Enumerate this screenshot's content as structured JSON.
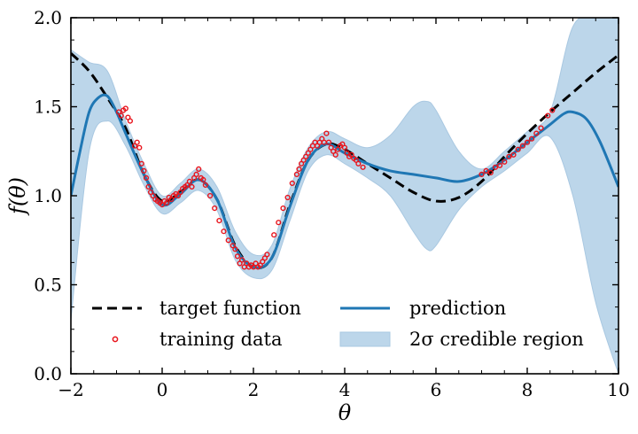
{
  "chart_data": {
    "type": "line",
    "xlabel": "θ",
    "ylabel": "f(θ)",
    "xlim": [
      -2,
      10
    ],
    "ylim": [
      0,
      2
    ],
    "xticks": [
      -2,
      0,
      2,
      4,
      6,
      8,
      10
    ],
    "yticks": [
      0.0,
      0.5,
      1.0,
      1.5,
      2.0
    ],
    "xtick_labels": [
      "−2",
      "0",
      "2",
      "4",
      "6",
      "8",
      "10"
    ],
    "ytick_labels": [
      "0.0",
      "0.5",
      "1.0",
      "1.5",
      "2.0"
    ],
    "grid": false,
    "legend_position": "bottom",
    "colors": {
      "target": "#000000",
      "prediction": "#1f77b4",
      "band": "#bcd6ea",
      "training": "#e8141c"
    },
    "series": [
      {
        "name": "target function",
        "style": "dashed",
        "x": [
          -2,
          -1.6,
          -1.2,
          -0.8,
          -0.4,
          0,
          0.4,
          0.8,
          1.2,
          1.6,
          2.0,
          2.4,
          2.8,
          3.2,
          3.6,
          4.0,
          4.5,
          5.0,
          5.5,
          6.0,
          6.5,
          7.0,
          7.5,
          8.0,
          8.5,
          9.0,
          9.5,
          10
        ],
        "y": [
          1.8,
          1.7,
          1.55,
          1.38,
          1.12,
          0.97,
          1.02,
          1.09,
          0.98,
          0.72,
          0.6,
          0.65,
          0.95,
          1.2,
          1.29,
          1.26,
          1.18,
          1.1,
          1.02,
          0.97,
          0.99,
          1.08,
          1.22,
          1.35,
          1.47,
          1.58,
          1.69,
          1.79
        ]
      },
      {
        "name": "prediction",
        "style": "solid",
        "x": [
          -2,
          -1.8,
          -1.6,
          -1.4,
          -1.2,
          -1.0,
          -0.8,
          -0.4,
          0,
          0.4,
          0.8,
          1.2,
          1.6,
          2.0,
          2.4,
          2.8,
          3.2,
          3.6,
          4.0,
          4.5,
          5.0,
          5.5,
          6.0,
          6.5,
          7.0,
          7.5,
          8.0,
          8.5,
          8.8,
          9.0,
          9.3,
          9.6,
          10
        ],
        "y": [
          1.0,
          1.25,
          1.47,
          1.55,
          1.56,
          1.47,
          1.35,
          1.12,
          0.95,
          1.01,
          1.09,
          0.98,
          0.71,
          0.6,
          0.65,
          0.94,
          1.2,
          1.29,
          1.24,
          1.18,
          1.14,
          1.12,
          1.1,
          1.08,
          1.12,
          1.2,
          1.3,
          1.4,
          1.46,
          1.47,
          1.43,
          1.3,
          1.05
        ]
      }
    ],
    "band": {
      "name": "2σ credible region",
      "x": [
        -2,
        -1.6,
        -1.2,
        -0.8,
        -0.4,
        0,
        0.4,
        0.8,
        1.2,
        1.6,
        2.0,
        2.4,
        2.8,
        3.2,
        3.6,
        4.0,
        4.5,
        5.0,
        5.5,
        5.8,
        6.0,
        6.5,
        7.0,
        7.5,
        8.0,
        8.5,
        9.0,
        9.5,
        10
      ],
      "lower": [
        0.3,
        1.25,
        1.42,
        1.28,
        1.06,
        0.9,
        0.96,
        1.03,
        0.92,
        0.64,
        0.54,
        0.58,
        0.86,
        1.14,
        1.23,
        1.18,
        1.1,
        1.0,
        0.8,
        0.7,
        0.72,
        0.92,
        1.05,
        1.14,
        1.24,
        1.33,
        1.0,
        0.4,
        0.0
      ],
      "upper": [
        1.82,
        1.75,
        1.7,
        1.42,
        1.18,
        1.0,
        1.07,
        1.15,
        1.05,
        0.8,
        0.67,
        0.72,
        1.04,
        1.27,
        1.36,
        1.32,
        1.27,
        1.34,
        1.5,
        1.53,
        1.48,
        1.25,
        1.15,
        1.25,
        1.36,
        1.47,
        1.95,
        2.0,
        2.0
      ]
    },
    "training_data": {
      "name": "training data",
      "x": [
        -0.95,
        -0.9,
        -0.85,
        -0.8,
        -0.75,
        -0.7,
        -0.6,
        -0.55,
        -0.5,
        -0.45,
        -0.4,
        -0.35,
        -0.3,
        -0.25,
        -0.2,
        -0.15,
        -0.1,
        -0.05,
        0.0,
        0.05,
        0.1,
        0.15,
        0.2,
        0.25,
        0.3,
        0.35,
        0.4,
        0.45,
        0.5,
        0.55,
        0.6,
        0.65,
        0.7,
        0.75,
        0.8,
        0.85,
        0.9,
        0.95,
        1.05,
        1.15,
        1.25,
        1.35,
        1.45,
        1.55,
        1.6,
        1.65,
        1.7,
        1.75,
        1.8,
        1.85,
        1.9,
        1.95,
        2.0,
        2.05,
        2.1,
        2.15,
        2.2,
        2.25,
        2.3,
        2.45,
        2.55,
        2.65,
        2.75,
        2.85,
        2.95,
        3.0,
        3.05,
        3.1,
        3.15,
        3.2,
        3.25,
        3.3,
        3.35,
        3.4,
        3.45,
        3.5,
        3.55,
        3.6,
        3.65,
        3.7,
        3.75,
        3.8,
        3.85,
        3.9,
        3.95,
        4.0,
        4.05,
        4.1,
        4.15,
        4.2,
        4.25,
        4.3,
        4.4,
        7.0,
        7.1,
        7.2,
        7.3,
        7.4,
        7.5,
        7.6,
        7.7,
        7.8,
        7.9,
        8.0,
        8.1,
        8.2,
        8.3,
        8.45,
        8.55
      ],
      "y": [
        1.47,
        1.45,
        1.48,
        1.49,
        1.44,
        1.42,
        1.28,
        1.3,
        1.27,
        1.18,
        1.14,
        1.1,
        1.05,
        1.02,
        1.0,
        0.98,
        0.97,
        0.96,
        0.95,
        0.97,
        0.96,
        0.99,
        0.98,
        1.0,
        1.01,
        1.0,
        1.02,
        1.04,
        1.05,
        1.06,
        1.08,
        1.05,
        1.1,
        1.12,
        1.15,
        1.1,
        1.09,
        1.06,
        1.0,
        0.93,
        0.86,
        0.8,
        0.75,
        0.72,
        0.7,
        0.66,
        0.62,
        0.64,
        0.6,
        0.62,
        0.6,
        0.61,
        0.6,
        0.62,
        0.6,
        0.61,
        0.63,
        0.65,
        0.67,
        0.78,
        0.85,
        0.93,
        0.99,
        1.07,
        1.12,
        1.15,
        1.18,
        1.2,
        1.22,
        1.24,
        1.26,
        1.28,
        1.3,
        1.28,
        1.3,
        1.32,
        1.3,
        1.35,
        1.3,
        1.27,
        1.25,
        1.23,
        1.26,
        1.28,
        1.29,
        1.27,
        1.24,
        1.22,
        1.23,
        1.21,
        1.2,
        1.18,
        1.16,
        1.12,
        1.14,
        1.13,
        1.16,
        1.17,
        1.19,
        1.22,
        1.23,
        1.26,
        1.28,
        1.3,
        1.32,
        1.35,
        1.38,
        1.45,
        1.48
      ]
    },
    "legend": {
      "target": "target function",
      "training": "training data",
      "prediction": "prediction",
      "band": "2σ credible region"
    }
  }
}
